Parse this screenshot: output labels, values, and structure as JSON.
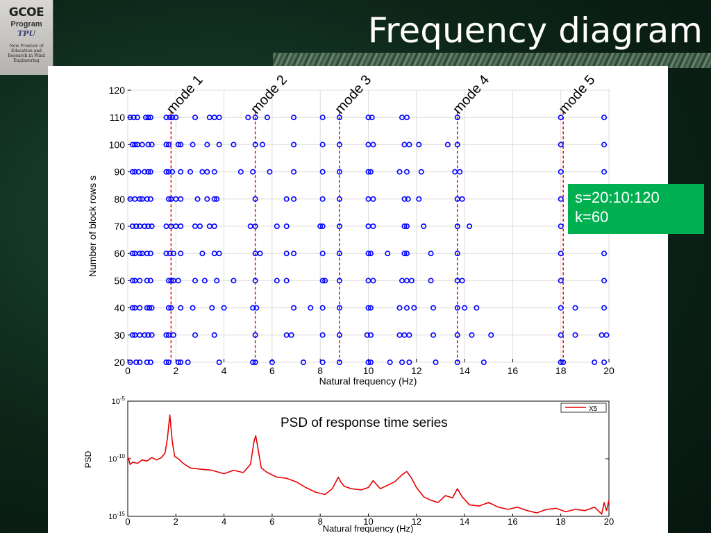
{
  "slide": {
    "title": "Frequency diagram",
    "logo": {
      "line1": "GCOE",
      "line2": "Program",
      "line3": "TPU",
      "line4": "New Frontier of Education and Research in Wind Engineering"
    },
    "info_box": {
      "line1": "s=20:10:120",
      "line2": "k=60",
      "color": "#00b050"
    }
  },
  "chart_data": [
    {
      "type": "scatter",
      "xlabel": "Natural frequency (Hz)",
      "ylabel": "Number of block rows s",
      "xlim": [
        0,
        20
      ],
      "ylim": [
        20,
        120
      ],
      "xticks": [
        0,
        2,
        4,
        6,
        8,
        10,
        12,
        14,
        16,
        18,
        20
      ],
      "yticks": [
        20,
        30,
        40,
        50,
        60,
        70,
        80,
        90,
        100,
        110,
        120
      ],
      "grid": true,
      "marker_color": "#0000ff",
      "marker": "circle",
      "mode_lines": {
        "color": "#e60000",
        "style": "dashed",
        "items": [
          {
            "label": "mode 1",
            "x": 1.8
          },
          {
            "label": "mode 2",
            "x": 5.3
          },
          {
            "label": "mode 3",
            "x": 8.8
          },
          {
            "label": "mode 4",
            "x": 13.7
          },
          {
            "label": "mode 5",
            "x": 18.1
          }
        ]
      },
      "rows": [
        {
          "y": 110,
          "x": [
            0.1,
            0.25,
            0.4,
            0.75,
            0.85,
            0.95,
            1.6,
            1.75,
            1.85,
            2.0,
            2.8,
            3.4,
            3.6,
            3.8,
            5.0,
            5.3,
            5.8,
            6.9,
            8.1,
            8.8,
            10.0,
            10.15,
            11.4,
            11.6,
            13.7,
            18.0,
            19.8
          ]
        },
        {
          "y": 100,
          "x": [
            0.2,
            0.3,
            0.4,
            0.6,
            0.85,
            1.0,
            1.6,
            1.7,
            2.1,
            2.2,
            2.7,
            3.3,
            3.8,
            4.4,
            5.3,
            5.6,
            6.9,
            8.1,
            8.8,
            10.0,
            10.2,
            11.5,
            11.7,
            12.1,
            13.3,
            13.7,
            18.0,
            19.8
          ]
        },
        {
          "y": 90,
          "x": [
            0.2,
            0.3,
            0.45,
            0.7,
            0.85,
            0.95,
            1.6,
            1.7,
            1.85,
            2.2,
            2.6,
            3.1,
            3.3,
            3.6,
            4.7,
            5.2,
            5.9,
            6.9,
            8.1,
            8.8,
            10.0,
            10.1,
            11.3,
            11.6,
            12.2,
            13.6,
            13.8,
            18.0,
            19.8
          ]
        },
        {
          "y": 80,
          "x": [
            0.1,
            0.3,
            0.5,
            0.6,
            0.8,
            0.95,
            1.7,
            1.8,
            2.0,
            2.2,
            2.9,
            3.3,
            3.6,
            3.7,
            5.3,
            6.6,
            6.9,
            8.1,
            8.8,
            10.0,
            10.2,
            11.5,
            11.65,
            12.1,
            13.7,
            13.9,
            18.0,
            19.8
          ]
        },
        {
          "y": 70,
          "x": [
            0.2,
            0.35,
            0.5,
            0.7,
            0.85,
            1.0,
            1.6,
            1.8,
            2.0,
            2.2,
            2.8,
            3.0,
            3.4,
            3.6,
            5.1,
            5.3,
            6.2,
            6.6,
            8.0,
            8.1,
            8.8,
            10.0,
            10.2,
            11.5,
            11.6,
            12.3,
            13.7,
            14.2,
            18.0,
            19.8
          ]
        },
        {
          "y": 60,
          "x": [
            0.2,
            0.3,
            0.5,
            0.6,
            0.8,
            0.95,
            1.6,
            1.75,
            1.9,
            2.2,
            3.1,
            3.6,
            3.8,
            5.3,
            5.5,
            6.6,
            6.9,
            8.1,
            8.8,
            10.0,
            10.1,
            10.8,
            11.5,
            11.6,
            12.6,
            13.7,
            18.0,
            19.8
          ]
        },
        {
          "y": 50,
          "x": [
            0.2,
            0.3,
            0.5,
            0.8,
            0.95,
            1.7,
            1.8,
            1.9,
            2.1,
            2.8,
            3.2,
            3.7,
            4.4,
            5.3,
            6.2,
            6.6,
            8.1,
            8.2,
            8.8,
            10.0,
            10.2,
            11.4,
            11.6,
            11.8,
            12.6,
            13.7,
            13.9,
            18.0,
            19.8
          ]
        },
        {
          "y": 40,
          "x": [
            0.2,
            0.3,
            0.5,
            0.8,
            0.9,
            1.0,
            1.7,
            1.8,
            2.2,
            2.7,
            3.5,
            4.0,
            5.2,
            5.35,
            6.9,
            7.6,
            8.1,
            8.8,
            10.0,
            10.1,
            11.3,
            11.6,
            11.9,
            12.7,
            13.7,
            14.0,
            14.5,
            18.0,
            18.6,
            19.8
          ]
        },
        {
          "y": 30,
          "x": [
            0.2,
            0.3,
            0.5,
            0.7,
            0.85,
            1.0,
            1.6,
            1.7,
            1.9,
            2.8,
            3.6,
            5.3,
            6.6,
            6.8,
            8.1,
            8.8,
            9.95,
            10.1,
            11.3,
            11.5,
            11.7,
            12.7,
            13.7,
            14.3,
            15.1,
            18.0,
            18.6,
            19.7,
            19.9
          ]
        },
        {
          "y": 20,
          "x": [
            0.1,
            0.35,
            0.5,
            0.8,
            0.95,
            1.6,
            1.7,
            2.1,
            2.2,
            2.5,
            3.8,
            5.2,
            5.3,
            6.0,
            7.3,
            8.1,
            8.8,
            10.0,
            10.1,
            10.9,
            11.4,
            11.7,
            12.8,
            13.7,
            14.8,
            18.0,
            18.1,
            19.4,
            19.8
          ]
        }
      ]
    },
    {
      "type": "line",
      "title": "PSD of response time series",
      "xlabel": "Natural frequency (Hz)",
      "ylabel": "PSD",
      "xlim": [
        0,
        20
      ],
      "yscale": "log",
      "ylim_exp": [
        -15,
        -5
      ],
      "xticks": [
        0,
        2,
        4,
        6,
        8,
        10,
        12,
        14,
        16,
        18,
        20
      ],
      "ytick_labels": [
        "10-5",
        "10-10",
        "10-15"
      ],
      "legend": {
        "location": "top-right",
        "label": "X5"
      },
      "series": [
        {
          "name": "X5",
          "color": "#e60000",
          "x": [
            0,
            0.1,
            0.2,
            0.4,
            0.6,
            0.8,
            1.0,
            1.2,
            1.4,
            1.55,
            1.65,
            1.75,
            1.85,
            1.95,
            2.1,
            2.3,
            2.6,
            3.0,
            3.5,
            4.0,
            4.4,
            4.8,
            5.1,
            5.25,
            5.32,
            5.42,
            5.55,
            5.8,
            6.2,
            6.6,
            7.0,
            7.4,
            7.8,
            8.2,
            8.5,
            8.75,
            8.85,
            9.0,
            9.3,
            9.7,
            10.0,
            10.2,
            10.5,
            10.8,
            11.1,
            11.4,
            11.6,
            11.8,
            12.0,
            12.3,
            12.6,
            12.9,
            13.2,
            13.5,
            13.7,
            13.9,
            14.2,
            14.6,
            15.0,
            15.4,
            15.8,
            16.2,
            16.6,
            17.0,
            17.4,
            17.8,
            18.2,
            18.6,
            19.0,
            19.4,
            19.7,
            19.8,
            19.9,
            20.0
          ],
          "y_exp": [
            -9.8,
            -10.5,
            -10.3,
            -10.4,
            -10.1,
            -10.2,
            -9.9,
            -10.1,
            -9.9,
            -9.5,
            -8.2,
            -6.2,
            -8.5,
            -9.8,
            -10.0,
            -10.4,
            -10.8,
            -10.9,
            -11.0,
            -11.3,
            -11.0,
            -11.2,
            -10.5,
            -8.5,
            -8.0,
            -9.2,
            -10.8,
            -11.2,
            -11.6,
            -11.7,
            -12.0,
            -12.5,
            -12.9,
            -13.1,
            -12.6,
            -11.6,
            -12.0,
            -12.4,
            -12.6,
            -12.7,
            -12.5,
            -11.9,
            -12.6,
            -12.3,
            -12.0,
            -11.4,
            -11.1,
            -11.7,
            -12.5,
            -13.3,
            -13.6,
            -13.8,
            -13.2,
            -13.4,
            -12.6,
            -13.3,
            -14.0,
            -14.1,
            -13.8,
            -14.2,
            -14.4,
            -14.2,
            -14.5,
            -14.7,
            -14.4,
            -14.3,
            -14.6,
            -14.4,
            -14.5,
            -14.2,
            -14.8,
            -13.8,
            -14.5,
            -13.6
          ]
        }
      ]
    }
  ]
}
